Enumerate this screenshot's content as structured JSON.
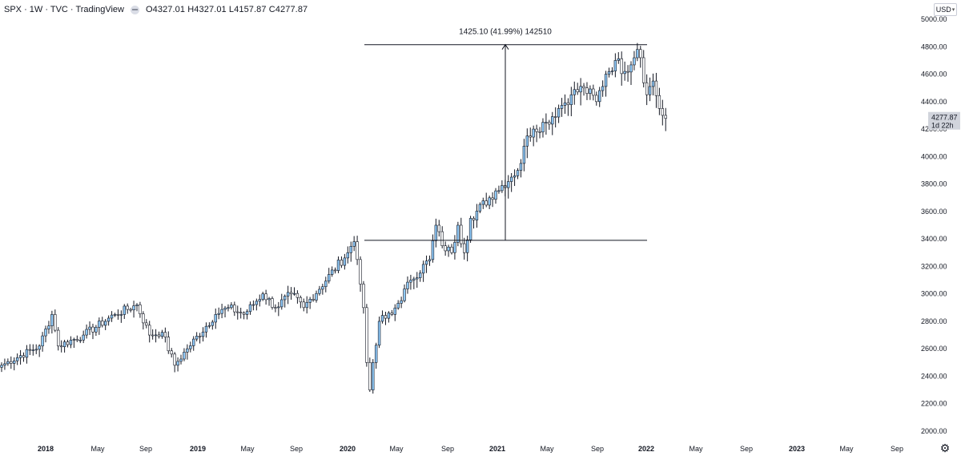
{
  "header": {
    "symbol_line": "SPX · 1W · TVC · TradingView",
    "ohlc": "O4327.01 H4327.01 L4157.87 C4277.87"
  },
  "currency": {
    "label": "USD",
    "chevron": "▾"
  },
  "settings": {
    "icon": "gear-icon",
    "glyph": "⚙"
  },
  "colors": {
    "up": "#90caf9",
    "down": "#ffffff",
    "wick": "#131722",
    "line": "#131722"
  },
  "chart_data": {
    "type": "candlestick",
    "ylim": [
      2000,
      5000
    ],
    "y_ticks": [
      "2000.00",
      "2200.00",
      "2400.00",
      "2600.00",
      "2800.00",
      "3000.00",
      "3200.00",
      "3400.00",
      "3600.00",
      "3800.00",
      "4000.00",
      "4200.00",
      "4400.00",
      "4600.00",
      "4800.00",
      "5000.00"
    ],
    "x_ticks": [
      {
        "label": "2018",
        "bold": true
      },
      {
        "label": "May",
        "bold": false
      },
      {
        "label": "Sep",
        "bold": false
      },
      {
        "label": "2019",
        "bold": true
      },
      {
        "label": "May",
        "bold": false
      },
      {
        "label": "Sep",
        "bold": false
      },
      {
        "label": "2020",
        "bold": true
      },
      {
        "label": "May",
        "bold": false
      },
      {
        "label": "Sep",
        "bold": false
      },
      {
        "label": "2021",
        "bold": true
      },
      {
        "label": "May",
        "bold": false
      },
      {
        "label": "Sep",
        "bold": false
      },
      {
        "label": "2022",
        "bold": true
      },
      {
        "label": "May",
        "bold": false
      },
      {
        "label": "Sep",
        "bold": false
      },
      {
        "label": "2023",
        "bold": true
      },
      {
        "label": "May",
        "bold": false
      },
      {
        "label": "Sep",
        "bold": false
      }
    ],
    "anchors": [
      {
        "w": 0,
        "v": 2480
      },
      {
        "w": 12,
        "v": 2620
      },
      {
        "w": 16,
        "v": 2850
      },
      {
        "w": 18,
        "v": 2620
      },
      {
        "w": 26,
        "v": 2700
      },
      {
        "w": 36,
        "v": 2850
      },
      {
        "w": 43,
        "v": 2920
      },
      {
        "w": 47,
        "v": 2700
      },
      {
        "w": 51,
        "v": 2720
      },
      {
        "w": 55,
        "v": 2480
      },
      {
        "w": 59,
        "v": 2600
      },
      {
        "w": 68,
        "v": 2850
      },
      {
        "w": 72,
        "v": 2900
      },
      {
        "w": 77,
        "v": 2850
      },
      {
        "w": 83,
        "v": 3000
      },
      {
        "w": 87,
        "v": 2900
      },
      {
        "w": 92,
        "v": 3000
      },
      {
        "w": 96,
        "v": 2900
      },
      {
        "w": 110,
        "v": 3300
      },
      {
        "w": 112,
        "v": 3380
      },
      {
        "w": 113,
        "v": 3250
      },
      {
        "w": 115,
        "v": 2900
      },
      {
        "w": 116,
        "v": 2500
      },
      {
        "w": 117,
        "v": 2300
      },
      {
        "w": 118,
        "v": 2500
      },
      {
        "w": 120,
        "v": 2800
      },
      {
        "w": 124,
        "v": 2850
      },
      {
        "w": 130,
        "v": 3100
      },
      {
        "w": 136,
        "v": 3250
      },
      {
        "w": 138,
        "v": 3500
      },
      {
        "w": 140,
        "v": 3350
      },
      {
        "w": 143,
        "v": 3300
      },
      {
        "w": 145,
        "v": 3500
      },
      {
        "w": 147,
        "v": 3300
      },
      {
        "w": 149,
        "v": 3550
      },
      {
        "w": 157,
        "v": 3750
      },
      {
        "w": 162,
        "v": 3850
      },
      {
        "w": 165,
        "v": 3950
      },
      {
        "w": 167,
        "v": 4150
      },
      {
        "w": 169,
        "v": 4200
      },
      {
        "w": 173,
        "v": 4250
      },
      {
        "w": 177,
        "v": 4350
      },
      {
        "w": 181,
        "v": 4450
      },
      {
        "w": 185,
        "v": 4500
      },
      {
        "w": 189,
        "v": 4400
      },
      {
        "w": 192,
        "v": 4600
      },
      {
        "w": 195,
        "v": 4700
      },
      {
        "w": 198,
        "v": 4620
      },
      {
        "w": 202,
        "v": 4780
      },
      {
        "w": 203,
        "v": 4720
      },
      {
        "w": 205,
        "v": 4450
      },
      {
        "w": 207,
        "v": 4550
      },
      {
        "w": 209,
        "v": 4350
      },
      {
        "w": 210,
        "v": 4300
      },
      {
        "w": 211,
        "v": 4277.87
      }
    ],
    "last_price": {
      "label": "4277.87",
      "countdown": "1d 22h",
      "value": 4277.87
    },
    "measure": {
      "label": "1425.10 (41.99%) 142510",
      "low": 3390,
      "high": 4815
    }
  }
}
